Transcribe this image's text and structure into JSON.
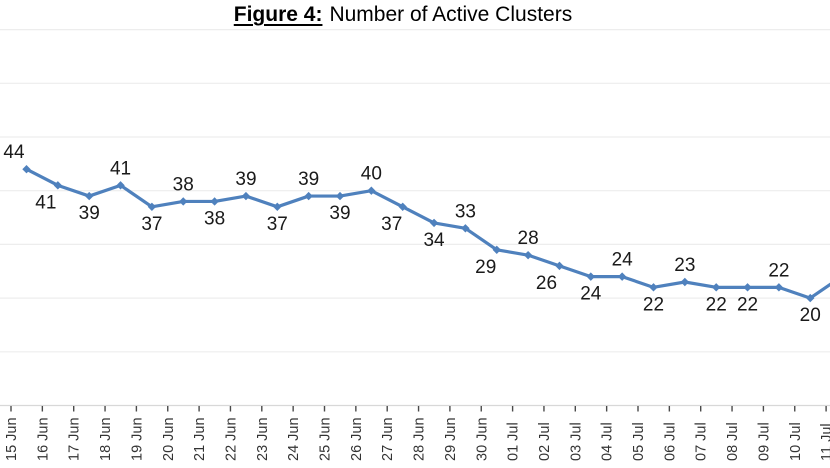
{
  "title": {
    "figure_label": "Figure 4:",
    "title_text": "Number of Active Clusters"
  },
  "chart_data": {
    "type": "line",
    "title": "Figure 4: Number of Active Clusters",
    "xlabel": "",
    "ylabel": "",
    "categories": [
      "15 Jun",
      "16 Jun",
      "17 Jun",
      "18 Jun",
      "19 Jun",
      "20 Jun",
      "21 Jun",
      "22 Jun",
      "23 Jun",
      "24 Jun",
      "25 Jun",
      "26 Jun",
      "27 Jun",
      "28 Jun",
      "29 Jun",
      "30 Jun",
      "01 Jul",
      "02 Jul",
      "03 Jul",
      "04 Jul",
      "05 Jul",
      "06 Jul",
      "07 Jul",
      "08 Jul",
      "09 Jul",
      "10 Jul",
      "11 Jul"
    ],
    "series": [
      {
        "name": "Number of Active Clusters",
        "values": [
          44,
          41,
          39,
          41,
          37,
          38,
          38,
          39,
          37,
          39,
          39,
          40,
          37,
          34,
          33,
          29,
          28,
          26,
          24,
          24,
          22,
          23,
          22,
          22,
          22,
          20
        ]
      }
    ],
    "visible_points": 26,
    "offscreen_next_value_estimate": 24,
    "crop_note": "left y-axis and the 11 Jul data point are cut off by the image crop; the line segment toward 11 Jul rises off the right edge",
    "ylim": [
      0,
      70
    ],
    "grid_step": 10,
    "gridlines": "horizontal",
    "legend": null,
    "marker": "diamond",
    "label_positions": [
      "above",
      "below",
      "below",
      "above",
      "below",
      "above",
      "below",
      "above",
      "below",
      "above",
      "below",
      "above",
      "below",
      "below",
      "above",
      "below",
      "above",
      "below",
      "below",
      "above",
      "below",
      "above",
      "below",
      "below",
      "above",
      "below"
    ],
    "label_dx": {
      "0": -12.5,
      "1": -12,
      "12": -11,
      "15": -11,
      "17": -13
    },
    "colors": {
      "line": "#4F81BD",
      "data_label": "#1a1a1a",
      "axis_text": "#333333",
      "gridline": "#ededed",
      "axis_line": "#d8d8d8",
      "tick": "#4a4a4a",
      "background": "#ffffff"
    }
  }
}
